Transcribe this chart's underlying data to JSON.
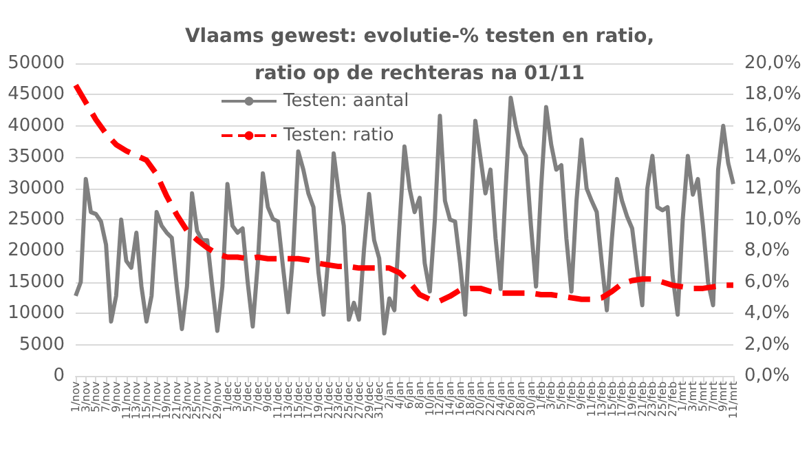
{
  "chart_data": {
    "type": "line",
    "title": "Vlaams gewest: evolutie-% testen en ratio,\nratio op de rechteras na 01/11",
    "categories": [
      "1/nov",
      null,
      "3/nov",
      null,
      "5/nov",
      null,
      "7/nov",
      null,
      "9/nov",
      null,
      "11/nov",
      null,
      "13/nov",
      null,
      "15/nov",
      null,
      "17/nov",
      null,
      "19/nov",
      null,
      "21/nov",
      null,
      "23/nov",
      null,
      "25/nov",
      null,
      "27/nov",
      null,
      "29/nov",
      null,
      "1/dec",
      null,
      "3/dec",
      null,
      "5/dec",
      null,
      "7/dec",
      null,
      "9/dec",
      null,
      "11/dec",
      null,
      "13/dec",
      null,
      "15/dec",
      null,
      "17/dec",
      null,
      "19/dec",
      null,
      "21/dec",
      null,
      "23/dec",
      null,
      "25/dec",
      null,
      "27/dec",
      null,
      "29/dec",
      null,
      "31/dec",
      null,
      "2/jan",
      null,
      "4/jan",
      null,
      "6/jan",
      null,
      "8/jan",
      null,
      "10/jan",
      null,
      "12/jan",
      null,
      "14/jan",
      null,
      "16/jan",
      null,
      "18/jan",
      null,
      "20/jan",
      null,
      "22/jan",
      null,
      "24/jan",
      null,
      "26/jan",
      null,
      "28/jan",
      null,
      "30/jan",
      null,
      "1/feb",
      null,
      "3/feb",
      null,
      "5/feb",
      null,
      "7/feb",
      null,
      "9/feb",
      null,
      "11/feb",
      null,
      "13/feb",
      null,
      "15/feb",
      null,
      "17/feb",
      null,
      "19/feb",
      null,
      "21/feb",
      null,
      "23/feb",
      null,
      "25/feb",
      null,
      "27/feb",
      null,
      "1/mrt",
      null,
      "3/mrt",
      null,
      "5/mrt",
      null,
      "7/mrt",
      null,
      "9/mrt",
      null,
      "11/mrt"
    ],
    "series": [
      {
        "name": "Testen: aantal",
        "color": "#808080",
        "line_style": "solid",
        "values": [
          12800,
          15000,
          31500,
          26200,
          25900,
          24700,
          21000,
          8700,
          12800,
          25000,
          18400,
          17300,
          22900,
          14300,
          8700,
          12800,
          26200,
          24000,
          22900,
          22100,
          14300,
          7500,
          14300,
          29200,
          23200,
          21700,
          21700,
          14300,
          7200,
          14300,
          30700,
          24000,
          22900,
          23600,
          15000,
          7900,
          18000,
          32400,
          27000,
          25100,
          24700,
          17300,
          10200,
          19500,
          35900,
          33000,
          29200,
          27000,
          16500,
          9800,
          19500,
          35600,
          29200,
          24000,
          9000,
          11700,
          9000,
          20300,
          29100,
          21700,
          18800,
          6800,
          12400,
          10500,
          24000,
          36700,
          30000,
          26200,
          28500,
          18000,
          13500,
          25000,
          41600,
          28000,
          25000,
          24700,
          18000,
          9800,
          25000,
          40800,
          35000,
          29200,
          33000,
          22000,
          13900,
          30000,
          44500,
          40000,
          36700,
          35200,
          24000,
          14300,
          30000,
          43000,
          37000,
          33000,
          33700,
          22000,
          13500,
          28000,
          37800,
          30000,
          28000,
          26200,
          18000,
          10500,
          22000,
          31500,
          28000,
          25500,
          23600,
          17000,
          11300,
          30000,
          35200,
          27000,
          26500,
          27000,
          16000,
          9800,
          25000,
          35200,
          29000,
          31500,
          24000,
          15000,
          11300,
          33000,
          40000,
          34000,
          30700
        ]
      },
      {
        "name": "Testen: ratio",
        "color": "#ff0000",
        "line_style": "dashed",
        "axis": "y2",
        "x": [
          "1/nov",
          "3/nov",
          "5/nov",
          "7/nov",
          "9/nov",
          "11/nov",
          "13/nov",
          "15/nov",
          "17/nov",
          "19/nov",
          "21/nov",
          "23/nov",
          "25/nov",
          "27/nov",
          "29/nov",
          "1/dec",
          "3/dec",
          "5/dec",
          "7/dec",
          "9/dec",
          "11/dec",
          "13/dec",
          "15/dec",
          "17/dec",
          "19/dec",
          "21/dec",
          "23/dec",
          "25/dec",
          "27/dec",
          "29/dec",
          "31/dec",
          "2/jan",
          "4/jan",
          "6/jan",
          "8/jan",
          "10/jan",
          "12/jan",
          "14/jan",
          "16/jan",
          "18/jan",
          "20/jan",
          "22/jan",
          "24/jan",
          "26/jan",
          "28/jan",
          "30/jan",
          "1/feb",
          "3/feb",
          "5/feb",
          "7/feb",
          "9/feb",
          "11/feb",
          "13/feb",
          "15/feb",
          "17/feb",
          "19/feb",
          "21/feb",
          "23/feb",
          "25/feb",
          "27/feb",
          "1/mrt",
          "3/mrt",
          "5/mrt",
          "7/mrt",
          "9/mrt",
          "11/mrt"
        ],
        "values": [
          18.6,
          17.5,
          16.4,
          15.5,
          14.8,
          14.4,
          14.1,
          13.8,
          12.9,
          11.5,
          10.3,
          9.3,
          8.7,
          8.2,
          7.8,
          7.6,
          7.6,
          7.5,
          7.6,
          7.5,
          7.5,
          7.5,
          7.5,
          7.4,
          7.2,
          7.1,
          7.0,
          7.0,
          6.9,
          6.9,
          6.9,
          6.9,
          6.6,
          6.0,
          5.2,
          4.9,
          4.8,
          5.1,
          5.5,
          5.6,
          5.6,
          5.4,
          5.3,
          5.3,
          5.3,
          5.3,
          5.2,
          5.2,
          5.1,
          5.0,
          4.9,
          4.9,
          5.0,
          5.4,
          5.9,
          6.1,
          6.2,
          6.2,
          6.0,
          5.8,
          5.7,
          5.6,
          5.6,
          5.7,
          5.8,
          5.8
        ]
      }
    ],
    "ylim": [
      0,
      50000
    ],
    "yticks": [
      0,
      5000,
      10000,
      15000,
      20000,
      25000,
      30000,
      35000,
      40000,
      45000,
      50000
    ],
    "y2lim": [
      0,
      20
    ],
    "y2ticks": [
      {
        "value": 0,
        "label": "0,0%"
      },
      {
        "value": 2,
        "label": "2,0%"
      },
      {
        "value": 4,
        "label": "4,0%"
      },
      {
        "value": 6,
        "label": "6,0%"
      },
      {
        "value": 8,
        "label": "8,0%"
      },
      {
        "value": 10,
        "label": "10,0%"
      },
      {
        "value": 12,
        "label": "12,0%"
      },
      {
        "value": 14,
        "label": "14,0%"
      },
      {
        "value": 16,
        "label": "16,0%"
      },
      {
        "value": 18,
        "label": "18,0%"
      },
      {
        "value": 20,
        "label": "20,0%"
      }
    ],
    "grid": "y",
    "legend": "top",
    "marker": "none"
  }
}
